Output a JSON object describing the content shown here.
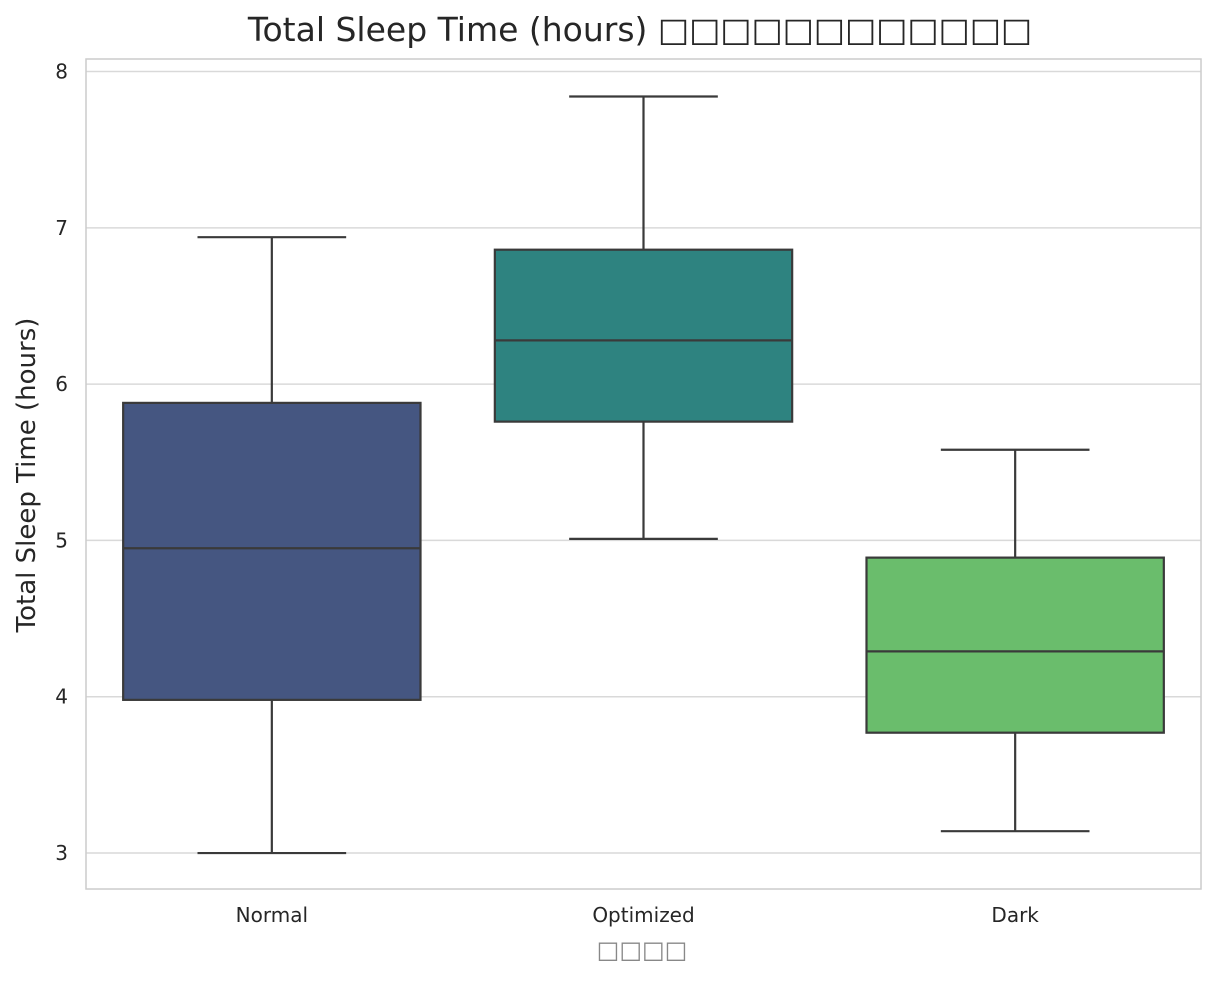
{
  "chart_data": {
    "type": "box",
    "title": "Total Sleep Time (hours) □□□□□□□□□□□□",
    "xlabel": "□□□□",
    "ylabel": "Total Sleep Time (hours)",
    "categories": [
      "Normal",
      "Optimized",
      "Dark"
    ],
    "yticks": [
      3,
      4,
      5,
      6,
      7,
      8
    ],
    "ylim": [
      2.77,
      8.08
    ],
    "grid": true,
    "boxes": [
      {
        "category": "Normal",
        "whisker_low": 3.0,
        "q1": 3.98,
        "median": 4.95,
        "q3": 5.88,
        "whisker_high": 6.94,
        "color": "#455681"
      },
      {
        "category": "Optimized",
        "whisker_low": 5.01,
        "q1": 5.76,
        "median": 6.28,
        "q3": 6.86,
        "whisker_high": 7.84,
        "color": "#2e8380"
      },
      {
        "category": "Dark",
        "whisker_low": 3.14,
        "q1": 3.77,
        "median": 4.29,
        "q3": 4.89,
        "whisker_high": 5.58,
        "color": "#6abd6c"
      }
    ]
  }
}
